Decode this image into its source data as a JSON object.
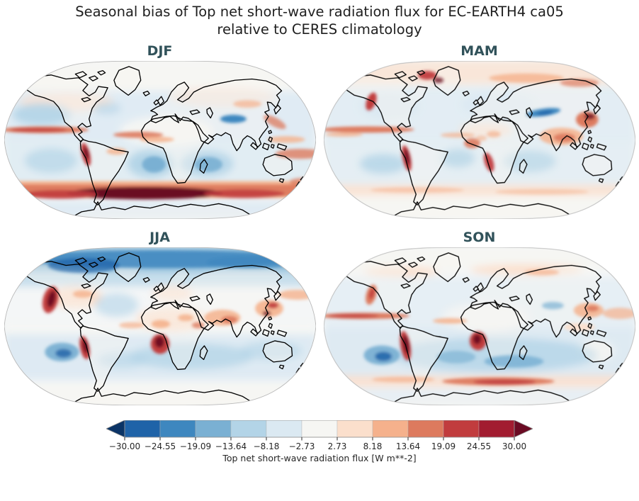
{
  "figure": {
    "title_line1": "Seasonal bias of Top net short-wave radiation flux for EC-EARTH4 ca05",
    "title_line2": "relative to CERES climatology",
    "title_color": "#1f1f1f",
    "panel_title_color": "#31525a",
    "background": "#ffffff"
  },
  "panels": [
    {
      "season": "DJF"
    },
    {
      "season": "MAM"
    },
    {
      "season": "JJA"
    },
    {
      "season": "SON"
    }
  ],
  "palette": {
    "ext_low": "#0b3466",
    "b1": "#1f63a8",
    "b2": "#3e87bf",
    "b3": "#7ab0d3",
    "b4": "#b3d4e7",
    "b5": "#dbe9f2",
    "center": "#f6f6f3",
    "r1": "#fbdfcc",
    "r2": "#f5b18c",
    "r3": "#dd7a5e",
    "r4": "#c13c3e",
    "r5": "#a21c30",
    "ext_high": "#6b0b23",
    "map_edge": "#b9b9b9",
    "coast": "#000000"
  },
  "chart_data": {
    "type": "heatmap",
    "layout": "2x2 global maps (Robinson projection) with shared horizontal discrete colorbar",
    "title": "Seasonal bias of Top net short-wave radiation flux for EC-EARTH4 ca05 relative to CERES climatology",
    "panels": [
      {
        "season": "DJF",
        "features": "Strong positive bias (>30 W m**-2) over the Southern Ocean 50-65S and near the Antarctic coast; positive bands along tropical Pacific/Atlantic ITCZ and the Peru coast; negative bias over subtropical southern oceans, NE Pacific and the Tibetan Plateau; near-zero (white) over the polar-night Arctic and Sahara."
      },
      {
        "season": "MAM",
        "features": "Positive bias over the Arctic with dark spots near the Canadian Arctic/Greenland, over East Asia and South Asia, along the tropical Pacific ITCZ and the Peru and Namibia coasts; widespread weak negative bias over mid-latitude oceans; narrow strong negative streak over central Asia; weak positive streaks over the Southern Ocean."
      },
      {
        "season": "JJA",
        "features": "Strong negative bias across the whole Arctic; strong positive bias off the west coasts of North America, Peru and Namibia (stratocumulus regions) and over Sahara/Sahel, Middle East, India and East Asia; broad weak negative bias over Southern Hemisphere oceans; white polar-night Antarctica."
      },
      {
        "season": "SON",
        "features": "Very strong positive bias along the Peru and Namibia coasts and the tropical Pacific ITCZ; broad negative bias over southern subtropical oceans with dark blue cores; positive band over the Southern Ocean around 55-60S; weak positive bias over Arctic land belts and the North Pacific."
      }
    ],
    "colorbar": {
      "label": "Top net short-wave radiation flux [W m**-2]",
      "units": "W m**-2",
      "tick_labels": [
        "−30.00",
        "−24.55",
        "−19.09",
        "−13.64",
        "−8.18",
        "−2.73",
        "2.73",
        "8.18",
        "13.64",
        "19.09",
        "24.55",
        "30.00"
      ],
      "tick_values": [
        -30.0,
        -24.55,
        -19.09,
        -13.64,
        -8.18,
        -2.73,
        2.73,
        8.18,
        13.64,
        19.09,
        24.55,
        30.0
      ],
      "range": [
        -30,
        30
      ],
      "n_segments": 11,
      "extend": "both",
      "segment_colors": [
        "#1f63a8",
        "#3e87bf",
        "#7ab0d3",
        "#b3d4e7",
        "#dbe9f2",
        "#f6f6f3",
        "#fbdfcc",
        "#f5b18c",
        "#dd7a5e",
        "#c13c3e",
        "#a21c30"
      ],
      "extend_low_color": "#0b3466",
      "extend_high_color": "#6b0b23"
    }
  }
}
